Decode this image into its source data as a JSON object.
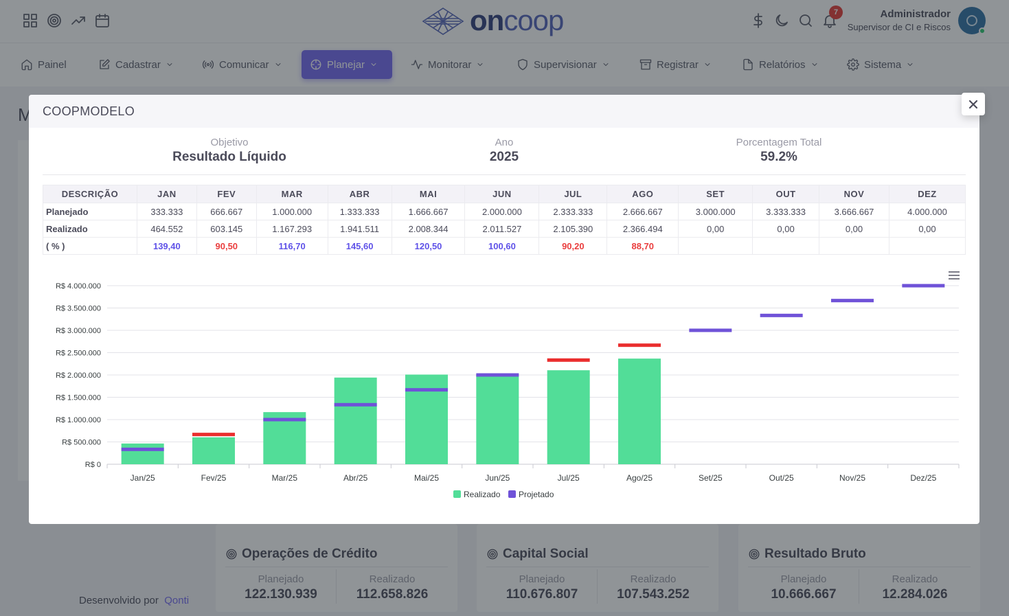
{
  "header": {
    "logo_text_on": "on",
    "logo_text_coop": "coop",
    "notification_count": "7",
    "user_name": "Administrador",
    "user_role": "Supervisor de CI e Riscos",
    "icons": [
      "grid-icon",
      "target-icon",
      "trending-up-icon",
      "calendar-icon",
      "dollar-icon",
      "moon-icon",
      "search-icon",
      "bell-icon"
    ]
  },
  "nav": {
    "items": [
      {
        "label": "Painel",
        "icon": "home-icon"
      },
      {
        "label": "Cadastrar",
        "icon": "edit-icon"
      },
      {
        "label": "Comunicar",
        "icon": "broadcast-icon"
      },
      {
        "label": "Planejar",
        "icon": "crosshair-icon",
        "active": true
      },
      {
        "label": "Monitorar",
        "icon": "activity-icon"
      },
      {
        "label": "Supervisionar",
        "icon": "shield-icon"
      },
      {
        "label": "Registrar",
        "icon": "archive-icon"
      },
      {
        "label": "Relatórios",
        "icon": "file-icon"
      },
      {
        "label": "Sistema",
        "icon": "settings-icon"
      }
    ]
  },
  "background": {
    "page_title_initial": "M",
    "developed_by": "Desenvolvido por",
    "developer": "Qonti",
    "cards": [
      {
        "title": "Operações de Crédito",
        "planned_label": "Planejado",
        "planned": "122.130.939",
        "realized_label": "Realizado",
        "realized": "112.658.826"
      },
      {
        "title": "Capital Social",
        "planned_label": "Planejado",
        "planned": "110.676.807",
        "realized_label": "Realizado",
        "realized": "107.543.252"
      },
      {
        "title": "Resultado Bruto",
        "planned_label": "Planejado",
        "planned": "10.666.667",
        "realized_label": "Realizado",
        "realized": "12.284.026"
      }
    ]
  },
  "modal": {
    "title": "COOPMODELO",
    "objective_label": "Objetivo",
    "objective": "Resultado Líquido",
    "year_label": "Ano",
    "year": "2025",
    "total_label": "Porcentagem Total",
    "total": "59.2%"
  },
  "table": {
    "headers": [
      "DESCRIÇÃO",
      "JAN",
      "FEV",
      "MAR",
      "ABR",
      "MAI",
      "JUN",
      "JUL",
      "AGO",
      "SET",
      "OUT",
      "NOV",
      "DEZ"
    ],
    "rows": [
      {
        "label": "Planejado",
        "values": [
          "333.333",
          "666.667",
          "1.000.000",
          "1.333.333",
          "1.666.667",
          "2.000.000",
          "2.333.333",
          "2.666.667",
          "3.000.000",
          "3.333.333",
          "3.666.667",
          "4.000.000"
        ]
      },
      {
        "label": "Realizado",
        "values": [
          "464.552",
          "603.145",
          "1.167.293",
          "1.941.511",
          "2.008.344",
          "2.011.527",
          "2.105.390",
          "2.366.494",
          "0,00",
          "0,00",
          "0,00",
          "0,00"
        ]
      }
    ],
    "pct_row": {
      "label": "( % )",
      "values": [
        "139,40",
        "90,50",
        "116,70",
        "145,60",
        "120,50",
        "100,60",
        "90,20",
        "88,70",
        "",
        "",
        "",
        ""
      ]
    }
  },
  "colors": {
    "realized_bar": "#52dd98",
    "projected_ok": "#6f52d8",
    "projected_miss": "#ea2e2e",
    "accent": "#7367f0"
  },
  "chart_data": {
    "type": "bar",
    "categories": [
      "Jan/25",
      "Fev/25",
      "Mar/25",
      "Abr/25",
      "Mai/25",
      "Jun/25",
      "Jul/25",
      "Ago/25",
      "Set/25",
      "Out/25",
      "Nov/25",
      "Dez/25"
    ],
    "series": [
      {
        "name": "Realizado",
        "values": [
          464552,
          603145,
          1167293,
          1941511,
          2008344,
          2011527,
          2105390,
          2366494,
          null,
          null,
          null,
          null
        ]
      },
      {
        "name": "Projetado",
        "values": [
          333333,
          666667,
          1000000,
          1333333,
          1666667,
          2000000,
          2333333,
          2666667,
          3000000,
          3333333,
          3666667,
          4000000
        ]
      }
    ],
    "ylim": [
      0,
      4000000
    ],
    "yticks": [
      "R$ 0",
      "R$ 500.000",
      "R$ 1.000.000",
      "R$ 1.500.000",
      "R$ 2.000.000",
      "R$ 2.500.000",
      "R$ 3.000.000",
      "R$ 3.500.000",
      "R$ 4.000.000"
    ],
    "ytick_values": [
      0,
      500000,
      1000000,
      1500000,
      2000000,
      2500000,
      3000000,
      3500000,
      4000000
    ],
    "grid": true,
    "legend": "bottom-center"
  }
}
